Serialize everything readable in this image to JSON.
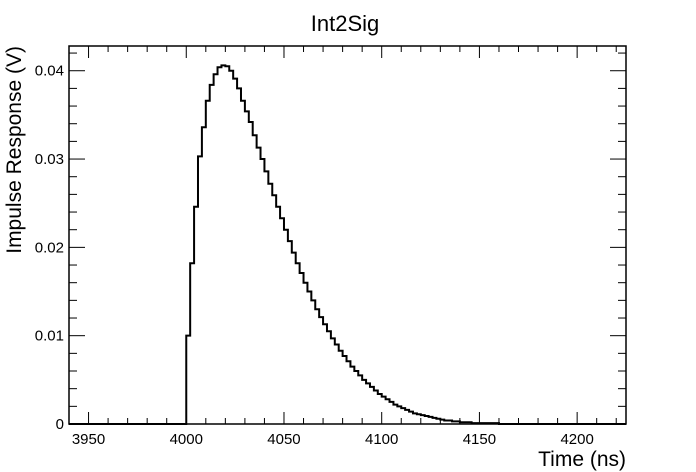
{
  "chart_data": {
    "type": "line",
    "style": "step-histogram",
    "title": "Int2Sig",
    "xlabel": "Time (ns)",
    "ylabel": "Impulse Response (V)",
    "xlim": [
      3940,
      4225
    ],
    "ylim": [
      0,
      0.0428
    ],
    "xticks": [
      3950,
      4000,
      4050,
      4100,
      4150,
      4200
    ],
    "xtick_labels": [
      "3950",
      "4000",
      "4050",
      "4100",
      "4150",
      "4200"
    ],
    "yticks": [
      0,
      0.01,
      0.02,
      0.03,
      0.04
    ],
    "ytick_labels": [
      "0",
      "0.01",
      "0.02",
      "0.03",
      "0.04"
    ],
    "grid": false,
    "legend": "none",
    "line_color": "#000000",
    "bin_width": 2,
    "series": [
      {
        "x": [
          3940,
          3998,
          4000,
          4002,
          4004,
          4006,
          4008,
          4010,
          4012,
          4014,
          4016,
          4018,
          4020,
          4022,
          4024,
          4026,
          4028,
          4030,
          4032,
          4034,
          4036,
          4038,
          4040,
          4042,
          4044,
          4046,
          4048,
          4050,
          4052,
          4054,
          4056,
          4058,
          4060,
          4062,
          4064,
          4066,
          4068,
          4070,
          4072,
          4074,
          4076,
          4078,
          4080,
          4082,
          4084,
          4086,
          4088,
          4090,
          4092,
          4094,
          4096,
          4098,
          4100,
          4102,
          4104,
          4106,
          4108,
          4110,
          4112,
          4114,
          4116,
          4118,
          4120,
          4122,
          4124,
          4126,
          4128,
          4130,
          4132,
          4134,
          4136,
          4138,
          4140,
          4142,
          4144,
          4146,
          4148,
          4150,
          4152,
          4154,
          4156,
          4158,
          4160,
          4162,
          4164,
          4166,
          4168,
          4170
        ],
        "y": [
          0,
          0,
          0.01,
          0.0182,
          0.0246,
          0.0303,
          0.0336,
          0.0366,
          0.0384,
          0.0396,
          0.0404,
          0.0406,
          0.0405,
          0.04,
          0.0391,
          0.038,
          0.0366,
          0.0354,
          0.0342,
          0.0327,
          0.0313,
          0.03,
          0.0286,
          0.0272,
          0.0259,
          0.0246,
          0.0233,
          0.022,
          0.0207,
          0.0194,
          0.0182,
          0.0171,
          0.016,
          0.015,
          0.014,
          0.013,
          0.0121,
          0.0113,
          0.0105,
          0.0097,
          0.009,
          0.0083,
          0.0077,
          0.0071,
          0.0065,
          0.006,
          0.0055,
          0.005,
          0.0046,
          0.0042,
          0.0038,
          0.0034,
          0.0031,
          0.0028,
          0.0025,
          0.0022,
          0.002,
          0.0018,
          0.0016,
          0.0014,
          0.0012,
          0.0011,
          0.001,
          0.0009,
          0.0008,
          0.0007,
          0.0006,
          0.0005,
          0.0004,
          0.0004,
          0.0003,
          0.0003,
          0.0002,
          0.0002,
          0.0002,
          0.0001,
          0.0001,
          0.0001,
          0.0001,
          0.0001,
          0.0001,
          0.0001,
          0.0,
          0.0,
          0.0,
          0.0,
          0.0,
          0.0
        ]
      }
    ]
  }
}
